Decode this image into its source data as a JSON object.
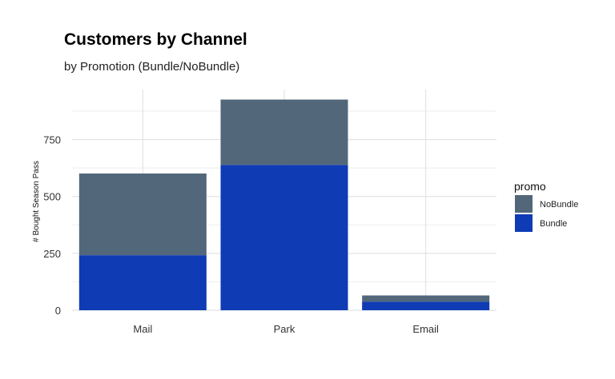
{
  "chart_data": {
    "type": "bar",
    "stacked": true,
    "title": "Customers by Channel",
    "subtitle": "by Promotion (Bundle/NoBundle)",
    "xlabel": "",
    "ylabel": "# Bought Season Pass",
    "categories": [
      "Mail",
      "Park",
      "Email"
    ],
    "series": [
      {
        "name": "Bundle",
        "values": [
          242,
          639,
          38
        ],
        "color": "#0f3bb5"
      },
      {
        "name": "NoBundle",
        "values": [
          359,
          287,
          27
        ],
        "color": "#52687a"
      }
    ],
    "ylim": [
      0,
      970
    ],
    "yticks": [
      0,
      250,
      500,
      750
    ],
    "grid": true,
    "legend": {
      "title": "promo",
      "position": "right",
      "entries": [
        "NoBundle",
        "Bundle"
      ]
    }
  }
}
